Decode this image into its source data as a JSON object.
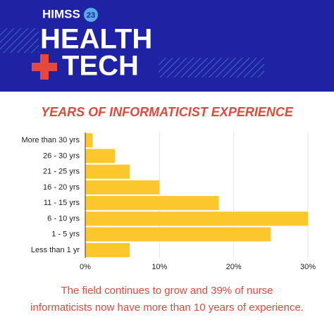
{
  "header": {
    "brand": "HIMSS",
    "year": "23",
    "line1": "HEALTH",
    "line2": "TECH"
  },
  "chart_data": {
    "type": "bar",
    "orientation": "horizontal",
    "title": "YEARS OF INFORMATICIST EXPERIENCE",
    "categories": [
      "More than 30 yrs",
      "26 - 30 yrs",
      "21 - 25 yrs",
      "16 - 20 yrs",
      "11 - 15 yrs",
      "6 - 10 yrs",
      "1 - 5 yrs",
      "Less than 1 yr"
    ],
    "values": [
      1,
      4,
      6,
      10,
      18,
      30,
      25,
      6
    ],
    "color": "#fbc72c",
    "xlim": [
      0,
      30
    ],
    "xticks": [
      {
        "value": 0,
        "label": "0%"
      },
      {
        "value": 10,
        "label": "10%"
      },
      {
        "value": 20,
        "label": "20%"
      },
      {
        "value": 30,
        "label": "30%"
      }
    ],
    "grid": true,
    "annotation_lines": [
      "The field continues to grow and 39% of nurse",
      "informaticists now have more than 10 years of experience."
    ]
  }
}
